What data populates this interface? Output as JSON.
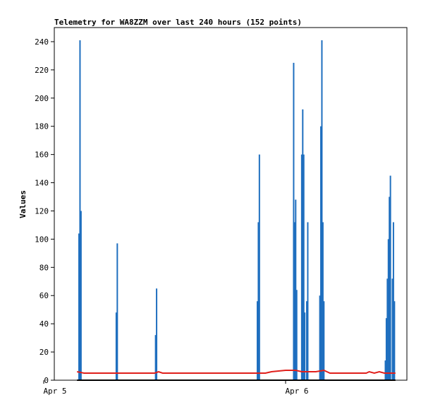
{
  "chart_data": {
    "type": "bar",
    "title": "Telemetry for WA8ZZM over last 240 hours (152 points)",
    "xlabel": "",
    "ylabel": "Values",
    "ylim": [
      0,
      250
    ],
    "yticks": [
      0,
      20,
      40,
      60,
      80,
      100,
      120,
      140,
      160,
      180,
      200,
      220,
      240
    ],
    "x_axis": {
      "type": "time",
      "range_hours": [
        0,
        240
      ],
      "ticks": [
        {
          "hour": 0,
          "label": "Apr 5"
        },
        {
          "hour": 240,
          "label": "Apr 6"
        }
      ]
    },
    "grid": false,
    "legend": "none",
    "series": [
      {
        "kind": "bars",
        "color": "#1f6fbf",
        "points": [
          {
            "x": 35.0,
            "y": 104
          },
          {
            "x": 36.0,
            "y": 241
          },
          {
            "x": 37.0,
            "y": 120
          },
          {
            "x": 72.0,
            "y": 48
          },
          {
            "x": 73.0,
            "y": 97
          },
          {
            "x": 111.0,
            "y": 32
          },
          {
            "x": 112.0,
            "y": 65
          },
          {
            "x": 212.0,
            "y": 56
          },
          {
            "x": 213.0,
            "y": 112
          },
          {
            "x": 214.0,
            "y": 160
          },
          {
            "x": 248.0,
            "y": 225
          },
          {
            "x": 249.0,
            "y": 112
          },
          {
            "x": 250.0,
            "y": 128
          },
          {
            "x": 251.0,
            "y": 64
          },
          {
            "x": 256.0,
            "y": 160
          },
          {
            "x": 257.0,
            "y": 192
          },
          {
            "x": 258.0,
            "y": 160
          },
          {
            "x": 259.0,
            "y": 48
          },
          {
            "x": 261.0,
            "y": 56
          },
          {
            "x": 262.0,
            "y": 112
          },
          {
            "x": 274.0,
            "y": 60
          },
          {
            "x": 275.0,
            "y": 180
          },
          {
            "x": 276.0,
            "y": 241
          },
          {
            "x": 277.0,
            "y": 112
          },
          {
            "x": 278.0,
            "y": 56
          },
          {
            "x": 339.0,
            "y": 14
          },
          {
            "x": 340.0,
            "y": 44
          },
          {
            "x": 341.0,
            "y": 72
          },
          {
            "x": 342.0,
            "y": 100
          },
          {
            "x": 343.0,
            "y": 130
          },
          {
            "x": 344.0,
            "y": 145
          },
          {
            "x": 346.0,
            "y": 72
          },
          {
            "x": 347.0,
            "y": 112
          },
          {
            "x": 348.0,
            "y": 56
          }
        ]
      },
      {
        "kind": "line",
        "color": "#e0201c",
        "points": [
          {
            "x": 33,
            "y": 6
          },
          {
            "x": 40,
            "y": 5
          },
          {
            "x": 110,
            "y": 5
          },
          {
            "x": 114,
            "y": 6
          },
          {
            "x": 118,
            "y": 5
          },
          {
            "x": 220,
            "y": 5
          },
          {
            "x": 226,
            "y": 6
          },
          {
            "x": 240,
            "y": 7
          },
          {
            "x": 250,
            "y": 7
          },
          {
            "x": 256,
            "y": 6
          },
          {
            "x": 270,
            "y": 6
          },
          {
            "x": 278,
            "y": 7
          },
          {
            "x": 284,
            "y": 5
          },
          {
            "x": 320,
            "y": 5
          },
          {
            "x": 323,
            "y": 6
          },
          {
            "x": 328,
            "y": 5
          },
          {
            "x": 333,
            "y": 6
          },
          {
            "x": 338,
            "y": 5
          },
          {
            "x": 349,
            "y": 5
          }
        ]
      },
      {
        "kind": "line",
        "color": "#000000",
        "points": [
          {
            "x": 33,
            "y": 0
          },
          {
            "x": 349,
            "y": 0
          }
        ]
      }
    ]
  }
}
